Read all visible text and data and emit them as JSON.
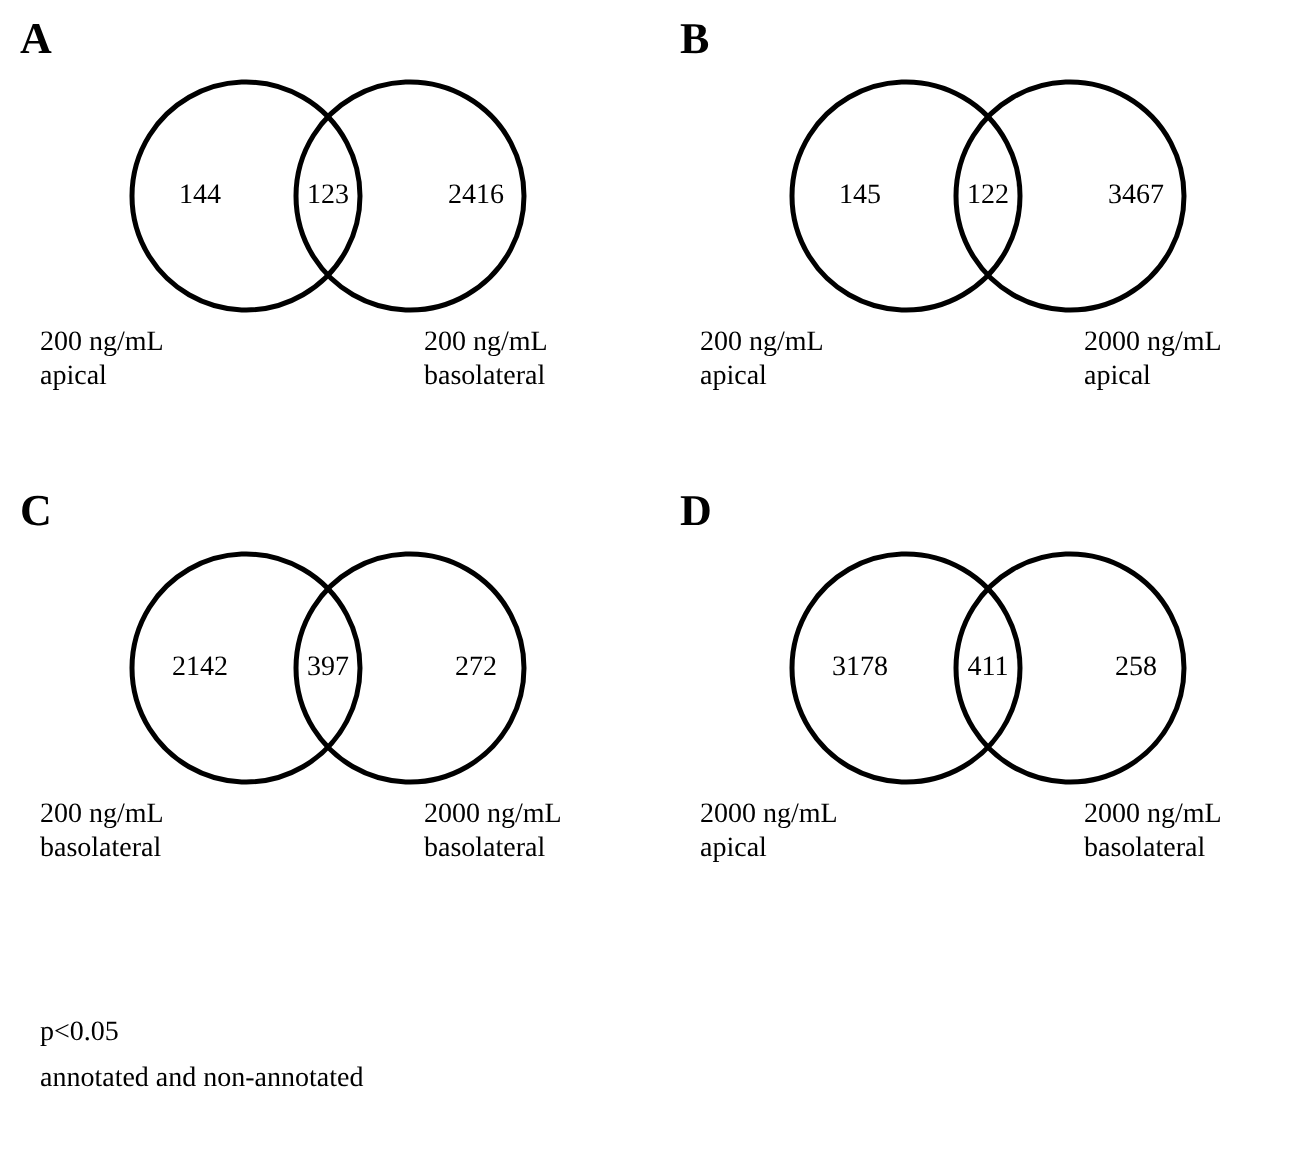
{
  "chart_data": [
    {
      "type": "other",
      "title": "A",
      "categories": [
        "200 ng/mL\napical",
        null,
        "200 ng/mL\nbasolateral"
      ],
      "values": [
        144,
        123,
        2416
      ],
      "data_labels": true
    },
    {
      "type": "other",
      "title": "B",
      "categories": [
        "200 ng/mL\napical",
        null,
        "2000 ng/mL\napical"
      ],
      "values": [
        145,
        122,
        3467
      ],
      "data_labels": true
    },
    {
      "type": "other",
      "title": "C",
      "categories": [
        "200 ng/mL\nbasolateral",
        null,
        "2000 ng/mL\nbasolateral"
      ],
      "values": [
        2142,
        397,
        272
      ],
      "data_labels": true
    },
    {
      "type": "other",
      "title": "D",
      "categories": [
        "2000 ng/mL\napical",
        null,
        "2000 ng/mL\nbasolateral"
      ],
      "values": [
        3178,
        411,
        258
      ],
      "data_labels": true,
      "annotations": [
        "p<0.05\nannotated and non-annotated"
      ]
    }
  ]
}
